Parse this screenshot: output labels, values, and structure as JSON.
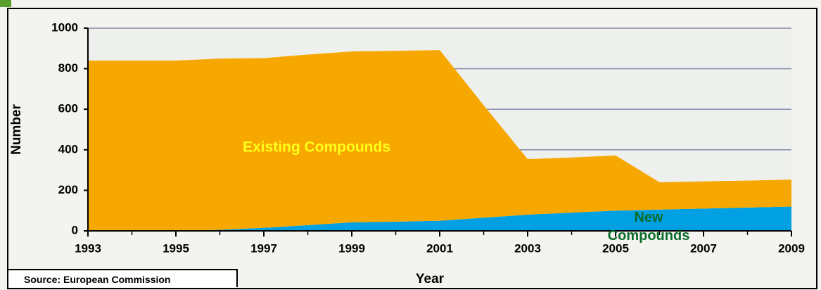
{
  "chart_data": {
    "type": "stacked_area",
    "x": [
      1993,
      1994,
      1995,
      1996,
      1997,
      1998,
      1999,
      2000,
      2001,
      2002,
      2003,
      2004,
      2005,
      2006,
      2007,
      2008,
      2009
    ],
    "series": [
      {
        "name": "New Compounds",
        "color": "#00a0e3",
        "values": [
          0,
          0,
          0,
          5,
          15,
          28,
          42,
          45,
          50,
          65,
          80,
          90,
          100,
          105,
          110,
          115,
          120
        ]
      },
      {
        "name": "Existing Compounds",
        "color": "#f7a800",
        "values": [
          840,
          840,
          840,
          845,
          837,
          842,
          843,
          843,
          842,
          555,
          274,
          272,
          272,
          135,
          134,
          133,
          133
        ]
      }
    ],
    "xlim": [
      1993,
      2009
    ],
    "xticks": [
      1993,
      1995,
      1997,
      1999,
      2001,
      2003,
      2005,
      2007,
      2009
    ],
    "ylim": [
      0,
      1000
    ],
    "yticks": [
      0,
      200,
      400,
      600,
      800,
      1000
    ],
    "grid": true,
    "xlabel": "Year",
    "ylabel": "Number",
    "source": "Source: European Commission"
  }
}
